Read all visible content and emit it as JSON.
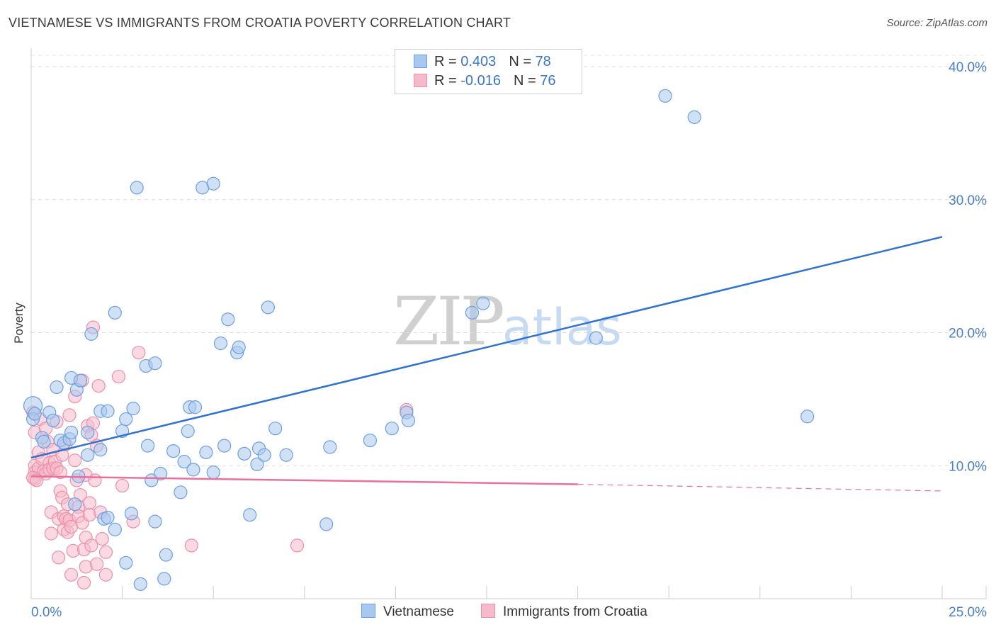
{
  "title": "VIETNAMESE VS IMMIGRANTS FROM CROATIA POVERTY CORRELATION CHART",
  "source": "Source: ZipAtlas.com",
  "watermark": {
    "zip": "ZIP",
    "atlas": "atlas"
  },
  "legend": {
    "rows": [
      {
        "r_label": "R = ",
        "r_value": "0.403",
        "n_label": "N = ",
        "n_value": "78"
      },
      {
        "r_label": "R = ",
        "r_value": "-0.016",
        "n_label": "N = ",
        "n_value": "76"
      }
    ]
  },
  "bottom_legend": {
    "series1": "Vietnamese",
    "series2": "Immigrants from Croatia"
  },
  "chart_data": {
    "type": "scatter",
    "title": "VIETNAMESE VS IMMIGRANTS FROM CROATIA POVERTY CORRELATION CHART",
    "xlabel": "",
    "ylabel": "Poverty",
    "xlim": [
      0,
      25
    ],
    "ylim": [
      0,
      42
    ],
    "x_tick_labels": [
      "0.0%",
      "25.0%"
    ],
    "y_ticks": [
      10,
      20,
      30,
      40
    ],
    "y_tick_labels": [
      "10.0%",
      "20.0%",
      "30.0%",
      "40.0%"
    ],
    "grid": true,
    "colors": {
      "series1": "#a9c8ef",
      "series1_edge": "#6c9fe0",
      "series1_line": "#2f72cf",
      "series2": "#f6bacb",
      "series2_edge": "#ec8fab",
      "series2_line": "#e8709a",
      "axis_text": "#4a7fc6"
    },
    "series": [
      {
        "name": "Vietnamese",
        "R": 0.403,
        "N": 78,
        "trend": {
          "x": [
            0.0,
            25.0
          ],
          "y": [
            10.6,
            27.2
          ]
        },
        "points": [
          [
            0.05,
            14.5
          ],
          [
            0.05,
            13.5
          ],
          [
            0.3,
            12.1
          ],
          [
            0.35,
            11.8
          ],
          [
            0.5,
            14.0
          ],
          [
            0.6,
            13.4
          ],
          [
            0.7,
            15.9
          ],
          [
            0.8,
            11.9
          ],
          [
            0.9,
            11.7
          ],
          [
            1.05,
            12.0
          ],
          [
            1.1,
            16.6
          ],
          [
            1.1,
            12.5
          ],
          [
            1.25,
            15.7
          ],
          [
            1.35,
            16.4
          ],
          [
            1.3,
            9.2
          ],
          [
            1.2,
            7.1
          ],
          [
            1.55,
            10.8
          ],
          [
            1.55,
            12.5
          ],
          [
            1.65,
            19.9
          ],
          [
            1.9,
            11.2
          ],
          [
            1.9,
            14.1
          ],
          [
            2.1,
            14.1
          ],
          [
            2.0,
            6.0
          ],
          [
            2.1,
            6.1
          ],
          [
            2.3,
            5.2
          ],
          [
            2.3,
            21.5
          ],
          [
            2.5,
            12.6
          ],
          [
            2.6,
            13.5
          ],
          [
            2.6,
            2.7
          ],
          [
            2.75,
            6.4
          ],
          [
            2.8,
            14.3
          ],
          [
            2.9,
            30.9
          ],
          [
            3.0,
            1.1
          ],
          [
            3.15,
            17.5
          ],
          [
            3.2,
            11.5
          ],
          [
            3.3,
            8.9
          ],
          [
            3.4,
            17.7
          ],
          [
            3.4,
            5.8
          ],
          [
            3.55,
            9.4
          ],
          [
            3.65,
            1.5
          ],
          [
            3.7,
            3.3
          ],
          [
            3.9,
            11.1
          ],
          [
            4.1,
            8.0
          ],
          [
            4.2,
            10.3
          ],
          [
            4.3,
            12.6
          ],
          [
            4.35,
            14.4
          ],
          [
            4.45,
            9.7
          ],
          [
            4.5,
            14.4
          ],
          [
            4.7,
            30.9
          ],
          [
            4.8,
            11.0
          ],
          [
            5.0,
            31.2
          ],
          [
            5.0,
            9.5
          ],
          [
            5.2,
            19.2
          ],
          [
            5.3,
            11.5
          ],
          [
            5.4,
            21.0
          ],
          [
            5.65,
            18.5
          ],
          [
            5.7,
            18.9
          ],
          [
            5.85,
            10.9
          ],
          [
            6.0,
            6.3
          ],
          [
            6.2,
            10.1
          ],
          [
            6.25,
            11.3
          ],
          [
            6.4,
            10.8
          ],
          [
            6.5,
            21.9
          ],
          [
            6.7,
            12.8
          ],
          [
            7.0,
            10.8
          ],
          [
            8.1,
            5.6
          ],
          [
            8.2,
            11.4
          ],
          [
            9.3,
            11.9
          ],
          [
            9.9,
            12.8
          ],
          [
            10.3,
            14.0
          ],
          [
            10.35,
            13.4
          ],
          [
            12.1,
            21.5
          ],
          [
            12.4,
            22.2
          ],
          [
            15.5,
            19.6
          ],
          [
            17.4,
            37.8
          ],
          [
            18.2,
            36.2
          ],
          [
            21.3,
            13.7
          ],
          [
            0.1,
            13.9
          ]
        ]
      },
      {
        "name": "Immigrants from Croatia",
        "R": -0.016,
        "N": 76,
        "trend": {
          "x": [
            0.0,
            15.0
          ],
          "y": [
            9.2,
            8.6
          ],
          "dashed_extension": {
            "x": [
              15.0,
              25.0
            ],
            "y": [
              8.6,
              8.1
            ]
          }
        },
        "points": [
          [
            0.05,
            14.0
          ],
          [
            0.1,
            12.5
          ],
          [
            0.1,
            10.0
          ],
          [
            0.1,
            9.5
          ],
          [
            0.1,
            9.0
          ],
          [
            0.2,
            11.0
          ],
          [
            0.2,
            9.8
          ],
          [
            0.25,
            13.5
          ],
          [
            0.3,
            10.5
          ],
          [
            0.35,
            9.6
          ],
          [
            0.4,
            12.8
          ],
          [
            0.4,
            9.4
          ],
          [
            0.45,
            11.8
          ],
          [
            0.5,
            10.2
          ],
          [
            0.5,
            9.7
          ],
          [
            0.55,
            6.5
          ],
          [
            0.55,
            4.9
          ],
          [
            0.6,
            11.2
          ],
          [
            0.6,
            9.8
          ],
          [
            0.65,
            10.3
          ],
          [
            0.7,
            9.8
          ],
          [
            0.7,
            13.3
          ],
          [
            0.75,
            6.0
          ],
          [
            0.75,
            3.1
          ],
          [
            0.8,
            9.5
          ],
          [
            0.8,
            8.1
          ],
          [
            0.85,
            10.8
          ],
          [
            0.85,
            7.6
          ],
          [
            0.9,
            5.2
          ],
          [
            0.9,
            6.2
          ],
          [
            0.95,
            11.6
          ],
          [
            0.95,
            6.0
          ],
          [
            1.0,
            7.1
          ],
          [
            1.0,
            5.0
          ],
          [
            1.05,
            13.8
          ],
          [
            1.05,
            5.9
          ],
          [
            1.1,
            1.8
          ],
          [
            1.1,
            5.4
          ],
          [
            1.15,
            3.6
          ],
          [
            1.2,
            15.2
          ],
          [
            1.2,
            10.4
          ],
          [
            1.25,
            8.9
          ],
          [
            1.3,
            6.9
          ],
          [
            1.3,
            6.2
          ],
          [
            1.35,
            7.8
          ],
          [
            1.4,
            16.4
          ],
          [
            1.4,
            5.7
          ],
          [
            1.45,
            3.7
          ],
          [
            1.45,
            1.2
          ],
          [
            1.5,
            9.3
          ],
          [
            1.5,
            4.6
          ],
          [
            1.5,
            2.4
          ],
          [
            1.55,
            13.0
          ],
          [
            1.6,
            7.2
          ],
          [
            1.6,
            6.3
          ],
          [
            1.65,
            12.3
          ],
          [
            1.65,
            4.0
          ],
          [
            1.7,
            13.2
          ],
          [
            1.7,
            20.4
          ],
          [
            1.75,
            8.9
          ],
          [
            1.8,
            11.5
          ],
          [
            1.8,
            2.6
          ],
          [
            1.85,
            16.0
          ],
          [
            1.9,
            6.5
          ],
          [
            1.95,
            4.5
          ],
          [
            2.05,
            3.5
          ],
          [
            2.05,
            1.8
          ],
          [
            2.4,
            16.7
          ],
          [
            2.5,
            8.5
          ],
          [
            2.8,
            5.8
          ],
          [
            2.95,
            18.5
          ],
          [
            4.4,
            4.0
          ],
          [
            7.3,
            4.0
          ],
          [
            10.3,
            14.2
          ],
          [
            0.05,
            9.1
          ],
          [
            0.15,
            8.9
          ]
        ]
      }
    ]
  }
}
